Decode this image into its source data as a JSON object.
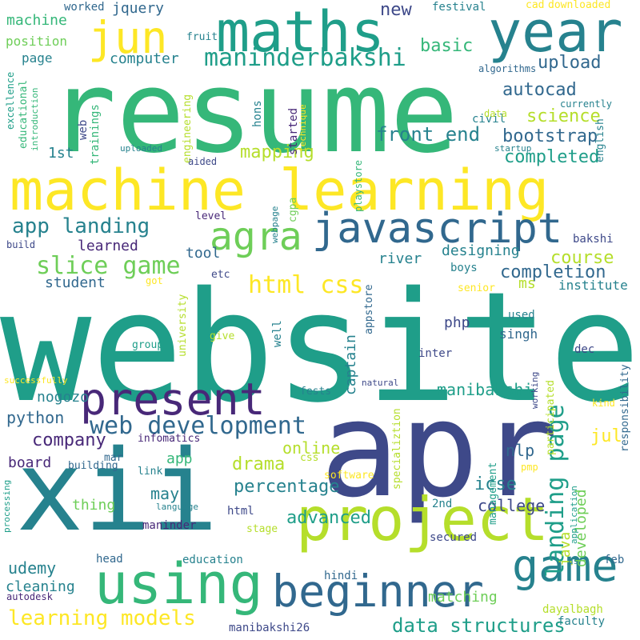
{
  "title": "",
  "palette": {
    "background": "#ffffff",
    "colors": [
      "#440154",
      "#482878",
      "#3e4989",
      "#31688e",
      "#26828e",
      "#1f9e89",
      "#35b779",
      "#6ece58",
      "#b5de2b",
      "#fde725"
    ]
  },
  "words": [
    {
      "text": "website",
      "color": "#1f9e89"
    },
    {
      "text": "resume",
      "color": "#35b779"
    },
    {
      "text": "apr",
      "color": "#3e4989"
    },
    {
      "text": "xii",
      "color": "#26828e"
    },
    {
      "text": "machine learning",
      "color": "#fde725"
    },
    {
      "text": "project",
      "color": "#b5de2b"
    },
    {
      "text": "using",
      "color": "#35b779"
    },
    {
      "text": "year",
      "color": "#26828e"
    },
    {
      "text": "maths",
      "color": "#1f9e89"
    },
    {
      "text": "jun",
      "color": "#fde725"
    },
    {
      "text": "beginner",
      "color": "#31688e"
    },
    {
      "text": "game",
      "color": "#26828e"
    },
    {
      "text": "present",
      "color": "#482878"
    },
    {
      "text": "javascript",
      "color": "#31688e"
    },
    {
      "text": "agra",
      "color": "#6ece58"
    },
    {
      "text": "maninderbakshi",
      "color": "#1f9e89"
    },
    {
      "text": "web development",
      "color": "#31688e"
    },
    {
      "text": "landing page",
      "color": "#1f9e89"
    },
    {
      "text": "slice game",
      "color": "#6ece58"
    },
    {
      "text": "html css",
      "color": "#fde725"
    },
    {
      "text": "app landing",
      "color": "#26828e"
    },
    {
      "text": "learning models",
      "color": "#fde725"
    },
    {
      "text": "data structures",
      "color": "#1f9e89"
    },
    {
      "text": "front end",
      "color": "#26828e"
    },
    {
      "text": "bootstrap",
      "color": "#31688e"
    },
    {
      "text": "science",
      "color": "#b5de2b"
    },
    {
      "text": "autocad",
      "color": "#31688e"
    },
    {
      "text": "upload",
      "color": "#31688e"
    },
    {
      "text": "basic",
      "color": "#35b779"
    },
    {
      "text": "new",
      "color": "#3e4989"
    },
    {
      "text": "mapping",
      "color": "#b5de2b"
    },
    {
      "text": "completed",
      "color": "#1f9e89"
    },
    {
      "text": "course",
      "color": "#b5de2b"
    },
    {
      "text": "completion",
      "color": "#31688e"
    },
    {
      "text": "designing",
      "color": "#26828e"
    },
    {
      "text": "river",
      "color": "#26828e"
    },
    {
      "text": "student",
      "color": "#31688e"
    },
    {
      "text": "learned",
      "color": "#482878"
    },
    {
      "text": "tool",
      "color": "#31688e"
    },
    {
      "text": "ms",
      "color": "#b5de2b"
    },
    {
      "text": "institute",
      "color": "#26828e"
    },
    {
      "text": "percentage",
      "color": "#26828e"
    },
    {
      "text": "advanced",
      "color": "#1f9e89"
    },
    {
      "text": "icse",
      "color": "#26828e"
    },
    {
      "text": "college",
      "color": "#3e4989"
    },
    {
      "text": "drama",
      "color": "#b5de2b"
    },
    {
      "text": "company",
      "color": "#482878"
    },
    {
      "text": "online",
      "color": "#b5de2b"
    },
    {
      "text": "python",
      "color": "#31688e"
    },
    {
      "text": "nogozo",
      "color": "#26828e"
    },
    {
      "text": "manibakshi",
      "color": "#1f9e89"
    },
    {
      "text": "nlp",
      "color": "#31688e"
    },
    {
      "text": "jul",
      "color": "#fde725"
    },
    {
      "text": "java",
      "color": "#b5de2b"
    },
    {
      "text": "developed",
      "color": "#6ece58"
    },
    {
      "text": "captain",
      "color": "#26828e"
    },
    {
      "text": "php",
      "color": "#3e4989"
    },
    {
      "text": "singh",
      "color": "#31688e"
    },
    {
      "text": "board",
      "color": "#482878"
    },
    {
      "text": "thing",
      "color": "#6ece58"
    },
    {
      "text": "may",
      "color": "#26828e"
    },
    {
      "text": "app",
      "color": "#35b779"
    },
    {
      "text": "udemy",
      "color": "#26828e"
    },
    {
      "text": "cleaning",
      "color": "#26828e"
    },
    {
      "text": "matching",
      "color": "#6ece58"
    },
    {
      "text": "maninder",
      "color": "#482878"
    },
    {
      "text": "secured",
      "color": "#3e4989"
    },
    {
      "text": "education",
      "color": "#26828e"
    },
    {
      "text": "head",
      "color": "#31688e"
    },
    {
      "text": "html",
      "color": "#3e4989"
    },
    {
      "text": "stage",
      "color": "#b5de2b"
    },
    {
      "text": "hindi",
      "color": "#31688e"
    },
    {
      "text": "dayalbagh",
      "color": "#b5de2b"
    },
    {
      "text": "faculty",
      "color": "#26828e"
    },
    {
      "text": "feb",
      "color": "#31688e"
    },
    {
      "text": "manibakshi26",
      "color": "#3e4989"
    },
    {
      "text": "autodesk",
      "color": "#482878"
    },
    {
      "text": "2nd",
      "color": "#26828e"
    },
    {
      "text": "specializtion",
      "color": "#b5de2b"
    },
    {
      "text": "management",
      "color": "#1f9e89"
    },
    {
      "text": "participated",
      "color": "#b5de2b"
    },
    {
      "text": "application",
      "color": "#1f9e89"
    },
    {
      "text": "responsibility",
      "color": "#31688e"
    },
    {
      "text": "kind",
      "color": "#fde725"
    },
    {
      "text": "working",
      "color": "#3e4989"
    },
    {
      "text": "natural",
      "color": "#3e4989"
    },
    {
      "text": "inter",
      "color": "#3e4989"
    },
    {
      "text": "fests",
      "color": "#26828e"
    },
    {
      "text": "well",
      "color": "#26828e"
    },
    {
      "text": "university",
      "color": "#b5de2b"
    },
    {
      "text": "appstore",
      "color": "#31688e"
    },
    {
      "text": "give",
      "color": "#b5de2b"
    },
    {
      "text": "group",
      "color": "#1f9e89"
    },
    {
      "text": "used",
      "color": "#26828e"
    },
    {
      "text": "dec",
      "color": "#3e4989"
    },
    {
      "text": "senior",
      "color": "#fde725"
    },
    {
      "text": "boys",
      "color": "#26828e"
    },
    {
      "text": "etc",
      "color": "#3e4989"
    },
    {
      "text": "got",
      "color": "#fde725"
    },
    {
      "text": "bakshi",
      "color": "#3e4989"
    },
    {
      "text": "level",
      "color": "#482878"
    },
    {
      "text": "build",
      "color": "#3e4989"
    },
    {
      "text": "webpage",
      "color": "#26828e"
    },
    {
      "text": "cgpa",
      "color": "#6ece58"
    },
    {
      "text": "engineering",
      "color": "#b5de2b"
    },
    {
      "text": "aided",
      "color": "#3e4989"
    },
    {
      "text": "uploaded",
      "color": "#26828e"
    },
    {
      "text": "startup",
      "color": "#26828e"
    },
    {
      "text": "playstore",
      "color": "#35b779"
    },
    {
      "text": "started",
      "color": "#482878"
    },
    {
      "text": "technique",
      "color": "#fde725"
    },
    {
      "text": "hons",
      "color": "#26828e"
    },
    {
      "text": "civil",
      "color": "#26828e"
    },
    {
      "text": "english",
      "color": "#26828e"
    },
    {
      "text": "currently",
      "color": "#26828e"
    },
    {
      "text": "data",
      "color": "#b5de2b"
    },
    {
      "text": "algorithms",
      "color": "#31688e"
    },
    {
      "text": "computer",
      "color": "#26828e"
    },
    {
      "text": "page",
      "color": "#26828e"
    },
    {
      "text": "position",
      "color": "#6ece58"
    },
    {
      "text": "machine",
      "color": "#35b779"
    },
    {
      "text": "jquery",
      "color": "#31688e"
    },
    {
      "text": "worked",
      "color": "#31688e"
    },
    {
      "text": "festival",
      "color": "#26828e"
    },
    {
      "text": "cad",
      "color": "#fde725"
    },
    {
      "text": "downloaded",
      "color": "#fde725"
    },
    {
      "text": "fruit",
      "color": "#26828e"
    },
    {
      "text": "web",
      "color": "#3e4989"
    },
    {
      "text": "trainings",
      "color": "#35b779"
    },
    {
      "text": "educational",
      "color": "#35b779"
    },
    {
      "text": "introduction",
      "color": "#35b779"
    },
    {
      "text": "excellence",
      "color": "#1f9e89"
    },
    {
      "text": "1st",
      "color": "#26828e"
    },
    {
      "text": "successfully",
      "color": "#fde725"
    },
    {
      "text": "infomatics",
      "color": "#482878"
    },
    {
      "text": "mar",
      "color": "#31688e"
    },
    {
      "text": "building",
      "color": "#31688e"
    },
    {
      "text": "link",
      "color": "#26828e"
    },
    {
      "text": "language",
      "color": "#26828e"
    },
    {
      "text": "processing",
      "color": "#1f9e89"
    },
    {
      "text": "software",
      "color": "#fde725"
    },
    {
      "text": "css",
      "color": "#b5de2b"
    },
    {
      "text": "pmp",
      "color": "#fde725"
    },
    {
      "text": "us",
      "color": "#26828e"
    }
  ]
}
